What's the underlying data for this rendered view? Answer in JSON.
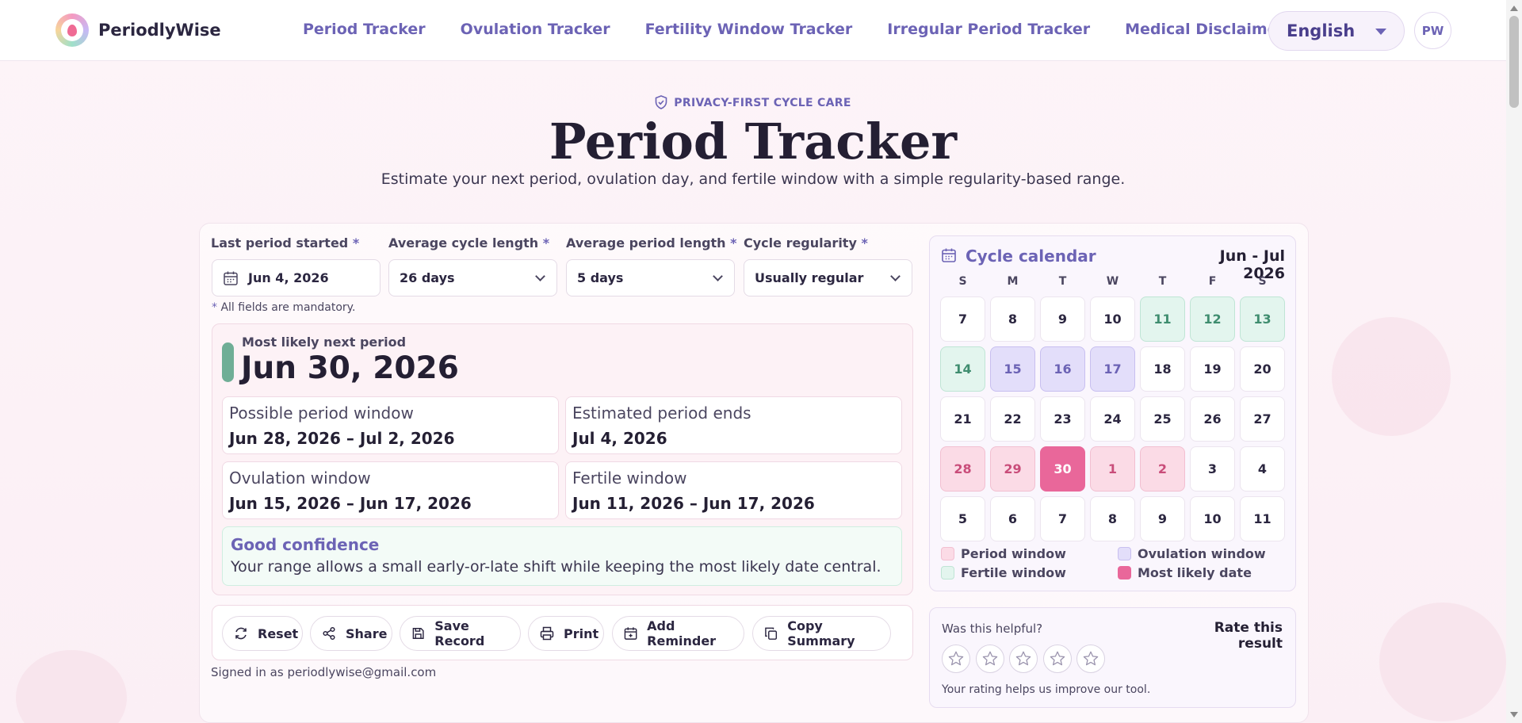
{
  "brand": {
    "name": "PeriodlyWise"
  },
  "nav": [
    "Period Tracker",
    "Ovulation Tracker",
    "Fertility Window Tracker",
    "Irregular Period Tracker",
    "Medical Disclaimer"
  ],
  "language": {
    "selected": "English"
  },
  "user": {
    "initials": "PW"
  },
  "hero": {
    "eyebrow": "PRIVACY-FIRST CYCLE CARE",
    "title": "Period Tracker",
    "subtitle": "Estimate your next period, ovulation day, and fertile window with a simple regularity-based range."
  },
  "form": {
    "last_period": {
      "label": "Last period started",
      "value": "Jun 4, 2026"
    },
    "cycle_length": {
      "label": "Average cycle length",
      "value": "26 days"
    },
    "period_length": {
      "label": "Average period length",
      "value": "5 days"
    },
    "regularity": {
      "label": "Cycle regularity",
      "value": "Usually regular"
    },
    "required_mark": "*",
    "mandatory_note": "All fields are mandatory."
  },
  "results": {
    "most_likely_label": "Most likely next period",
    "most_likely_date": "Jun 30, 2026",
    "possible_window": {
      "title": "Possible period window",
      "value": "Jun 28, 2026 – Jul 2, 2026"
    },
    "period_ends": {
      "title": "Estimated period ends",
      "value": "Jul 4, 2026"
    },
    "ovulation_window": {
      "title": "Ovulation window",
      "value": "Jun 15, 2026 – Jun 17, 2026"
    },
    "fertile_window": {
      "title": "Fertile window",
      "value": "Jun 11, 2026 – Jun 17, 2026"
    },
    "confidence_title": "Good confidence",
    "confidence_text": "Your range allows a small early-or-late shift while keeping the most likely date central."
  },
  "actions": {
    "reset": "Reset",
    "share": "Share",
    "save": "Save Record",
    "print": "Print",
    "reminder": "Add Reminder",
    "copy": "Copy Summary"
  },
  "signed_in": "Signed in as periodlywise@gmail.com",
  "calendar": {
    "title": "Cycle calendar",
    "range": "Jun - Jul 2026",
    "weekdays": [
      "S",
      "M",
      "T",
      "W",
      "T",
      "F",
      "S"
    ],
    "weeks": [
      [
        {
          "d": "7",
          "s": ""
        },
        {
          "d": "8",
          "s": ""
        },
        {
          "d": "9",
          "s": ""
        },
        {
          "d": "10",
          "s": ""
        },
        {
          "d": "11",
          "s": "fert"
        },
        {
          "d": "12",
          "s": "fert"
        },
        {
          "d": "13",
          "s": "fert"
        }
      ],
      [
        {
          "d": "14",
          "s": "fert"
        },
        {
          "d": "15",
          "s": "ovul"
        },
        {
          "d": "16",
          "s": "ovul"
        },
        {
          "d": "17",
          "s": "ovul"
        },
        {
          "d": "18",
          "s": ""
        },
        {
          "d": "19",
          "s": ""
        },
        {
          "d": "20",
          "s": ""
        }
      ],
      [
        {
          "d": "21",
          "s": ""
        },
        {
          "d": "22",
          "s": ""
        },
        {
          "d": "23",
          "s": ""
        },
        {
          "d": "24",
          "s": ""
        },
        {
          "d": "25",
          "s": ""
        },
        {
          "d": "26",
          "s": ""
        },
        {
          "d": "27",
          "s": ""
        }
      ],
      [
        {
          "d": "28",
          "s": "period"
        },
        {
          "d": "29",
          "s": "period"
        },
        {
          "d": "30",
          "s": "likely"
        },
        {
          "d": "1",
          "s": "period"
        },
        {
          "d": "2",
          "s": "period"
        },
        {
          "d": "3",
          "s": ""
        },
        {
          "d": "4",
          "s": ""
        }
      ],
      [
        {
          "d": "5",
          "s": ""
        },
        {
          "d": "6",
          "s": ""
        },
        {
          "d": "7",
          "s": ""
        },
        {
          "d": "8",
          "s": ""
        },
        {
          "d": "9",
          "s": ""
        },
        {
          "d": "10",
          "s": ""
        },
        {
          "d": "11",
          "s": ""
        }
      ]
    ],
    "legend": {
      "period": "Period window",
      "ovulation": "Ovulation window",
      "fertile": "Fertile window",
      "likely": "Most likely date"
    }
  },
  "rating": {
    "question": "Was this helpful?",
    "title": "Rate this result",
    "stars": 5,
    "selected": 0,
    "help": "Your rating helps us improve our tool."
  },
  "colors": {
    "accent": "#6c63b5",
    "fertile": "#e3f5ee",
    "ovulation": "#e3defa",
    "period": "#fbdbe6",
    "likely": "#e9679a",
    "confidence_bar": "#6fae96"
  }
}
